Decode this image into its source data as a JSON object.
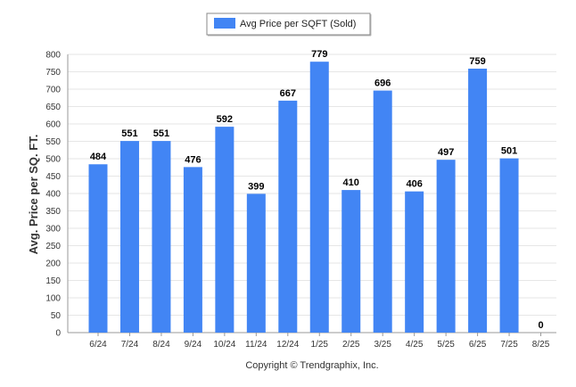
{
  "chart_data": {
    "type": "bar",
    "categories": [
      "6/24",
      "7/24",
      "8/24",
      "9/24",
      "10/24",
      "11/24",
      "12/24",
      "1/25",
      "2/25",
      "3/25",
      "4/25",
      "5/25",
      "6/25",
      "7/25",
      "8/25"
    ],
    "series": [
      {
        "name": "Avg Price per SQFT (Sold)",
        "values": [
          484,
          551,
          551,
          476,
          592,
          399,
          667,
          779,
          410,
          696,
          406,
          497,
          759,
          501,
          0
        ],
        "color": "#4285f4"
      }
    ],
    "ylabel": "Avg. Price per SQ. FT.",
    "xlabel": "",
    "ylim": [
      0,
      800
    ],
    "ytick_step": 50,
    "grid": true,
    "legend_position": "top-center"
  },
  "footer": {
    "copyright": "Copyright © Trendgraphix, Inc."
  },
  "colors": {
    "bar": "#4285f4",
    "grid": "#e6e6e6",
    "axis": "#999999"
  }
}
